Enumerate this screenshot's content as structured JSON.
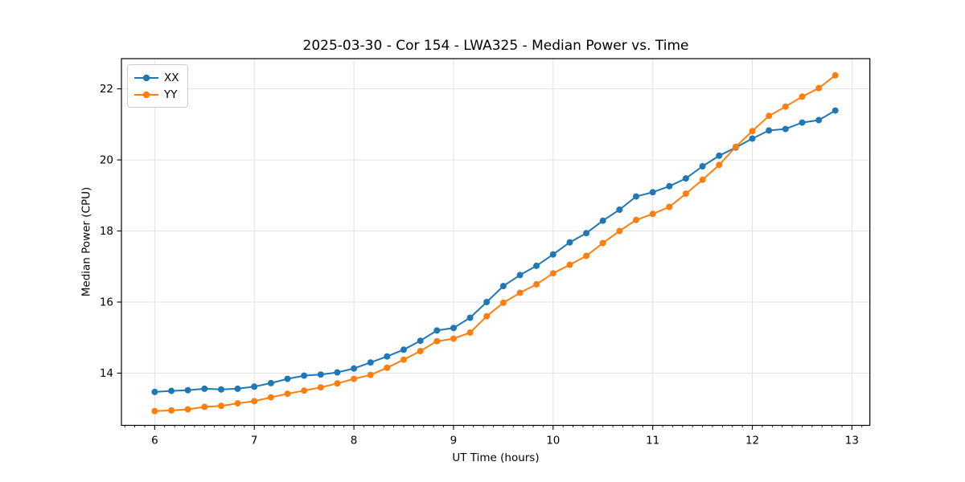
{
  "figure": {
    "title": "2025-03-30 - Cor 154 - LWA325 - Median Power vs. Time",
    "xlabel": "UT Time (hours)",
    "ylabel": "Median Power (CPU)"
  },
  "legend": {
    "position": "upper left",
    "entries": [
      {
        "label": "XX",
        "color": "#1f77b4"
      },
      {
        "label": "YY",
        "color": "#ff7f0e"
      }
    ]
  },
  "chart_data": {
    "type": "line",
    "title": "2025-03-30 - Cor 154 - LWA325 - Median Power vs. Time",
    "xlabel": "UT Time (hours)",
    "ylabel": "Median Power (CPU)",
    "xlim": [
      5.666,
      13.18
    ],
    "ylim": [
      12.53,
      22.85
    ],
    "x_major_ticks": [
      6,
      7,
      8,
      9,
      10,
      11,
      12,
      13
    ],
    "x_minor_tick_step": 0.1,
    "y_major_ticks": [
      14,
      16,
      18,
      20,
      22
    ],
    "grid": true,
    "legend_position": "upper left",
    "marker": "circle",
    "x": [
      6.0,
      6.167,
      6.333,
      6.5,
      6.667,
      6.833,
      7.0,
      7.167,
      7.333,
      7.5,
      7.667,
      7.833,
      8.0,
      8.167,
      8.333,
      8.5,
      8.667,
      8.833,
      9.0,
      9.167,
      9.333,
      9.5,
      9.667,
      9.833,
      10.0,
      10.167,
      10.333,
      10.5,
      10.667,
      10.833,
      11.0,
      11.167,
      11.333,
      11.5,
      11.667,
      11.833,
      12.0,
      12.167,
      12.333,
      12.5,
      12.667,
      12.833
    ],
    "series": [
      {
        "name": "XX",
        "color": "#1f77b4",
        "values": [
          13.47,
          13.5,
          13.52,
          13.56,
          13.54,
          13.56,
          13.62,
          13.72,
          13.84,
          13.93,
          13.96,
          14.02,
          14.13,
          14.3,
          14.47,
          14.66,
          14.91,
          15.2,
          15.27,
          15.56,
          16.0,
          16.45,
          16.76,
          17.02,
          17.34,
          17.68,
          17.94,
          18.29,
          18.6,
          18.97,
          19.09,
          19.26,
          19.48,
          19.82,
          20.12,
          20.35,
          20.6,
          20.83,
          20.87,
          21.05,
          21.12,
          21.39
        ]
      },
      {
        "name": "YY",
        "color": "#ff7f0e",
        "values": [
          12.93,
          12.95,
          12.98,
          13.05,
          13.08,
          13.15,
          13.21,
          13.32,
          13.42,
          13.51,
          13.6,
          13.71,
          13.84,
          13.95,
          14.15,
          14.38,
          14.62,
          14.9,
          14.97,
          15.14,
          15.6,
          15.98,
          16.26,
          16.5,
          16.81,
          17.05,
          17.3,
          17.66,
          18.0,
          18.31,
          18.48,
          18.68,
          19.05,
          19.44,
          19.86,
          20.37,
          20.81,
          21.24,
          21.5,
          21.78,
          22.02,
          22.38
        ]
      }
    ],
    "style": {
      "grid_color": "#e2e2e2",
      "spine_color": "#000000",
      "tick_color": "#000000",
      "background": "#ffffff"
    }
  }
}
